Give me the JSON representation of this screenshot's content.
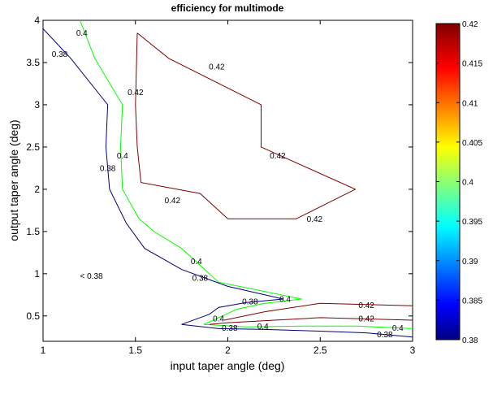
{
  "chart_data": {
    "type": "contour",
    "title": "efficiency for multimode",
    "xlabel": "input taper angle (deg)",
    "ylabel": "output taper angle (deg)",
    "xlim": [
      1,
      3
    ],
    "ylim": [
      0.2,
      4
    ],
    "xticks": [
      "1",
      "1.5",
      "2",
      "2.5",
      "3"
    ],
    "yticks": [
      "0.5",
      "1",
      "1.5",
      "2",
      "2.5",
      "3",
      "3.5",
      "4"
    ],
    "grid": false,
    "annotation": "< 0.38",
    "colorbar": {
      "range": [
        0.38,
        0.42
      ],
      "ticks": [
        "0.38",
        "0.385",
        "0.39",
        "0.395",
        "0.4",
        "0.405",
        "0.41",
        "0.415",
        "0.42"
      ],
      "colormap": [
        "#000080",
        "#0000ff",
        "#00ffff",
        "#ffff00",
        "#ff0000",
        "#800000"
      ]
    },
    "series": [
      {
        "level": "0.38",
        "color": "#000080",
        "paths": [
          [
            [
              1.0,
              3.9
            ],
            [
              1.15,
              3.55
            ],
            [
              1.35,
              3.0
            ],
            [
              1.34,
              2.5
            ],
            [
              1.36,
              2.0
            ],
            [
              1.45,
              1.6
            ],
            [
              1.55,
              1.3
            ],
            [
              1.75,
              1.05
            ],
            [
              2.0,
              0.85
            ],
            [
              2.3,
              0.7
            ]
          ],
          [
            [
              2.3,
              0.7
            ],
            [
              2.1,
              0.66
            ],
            [
              1.95,
              0.6
            ],
            [
              1.9,
              0.52
            ],
            [
              1.75,
              0.4
            ],
            [
              1.95,
              0.35
            ],
            [
              2.2,
              0.34
            ],
            [
              2.5,
              0.32
            ],
            [
              2.75,
              0.3
            ],
            [
              3.0,
              0.25
            ]
          ]
        ],
        "labels": [
          {
            "text": "0.38",
            "x": 1.09,
            "y": 3.6
          },
          {
            "text": "0.38",
            "x": 1.35,
            "y": 2.25
          },
          {
            "text": "0.38",
            "x": 1.85,
            "y": 0.95
          },
          {
            "text": "0.38",
            "x": 2.12,
            "y": 0.67
          },
          {
            "text": "0.38",
            "x": 2.01,
            "y": 0.36
          },
          {
            "text": "0.38",
            "x": 2.85,
            "y": 0.28
          }
        ]
      },
      {
        "level": "0.4",
        "color": "#00ff00",
        "paths": [
          [
            [
              1.2,
              4.0
            ],
            [
              1.28,
              3.55
            ],
            [
              1.43,
              3.0
            ],
            [
              1.42,
              2.5
            ],
            [
              1.43,
              2.0
            ],
            [
              1.52,
              1.65
            ],
            [
              1.6,
              1.5
            ],
            [
              1.75,
              1.3
            ],
            [
              1.95,
              0.9
            ],
            [
              2.4,
              0.7
            ]
          ],
          [
            [
              2.4,
              0.7
            ],
            [
              2.2,
              0.65
            ],
            [
              2.05,
              0.58
            ],
            [
              1.97,
              0.5
            ],
            [
              1.87,
              0.4
            ],
            [
              2.1,
              0.37
            ],
            [
              2.4,
              0.38
            ],
            [
              2.7,
              0.38
            ],
            [
              3.0,
              0.35
            ]
          ]
        ],
        "labels": [
          {
            "text": "0.4",
            "x": 1.21,
            "y": 3.85
          },
          {
            "text": "0.4",
            "x": 1.43,
            "y": 2.4
          },
          {
            "text": "0.4",
            "x": 1.83,
            "y": 1.15
          },
          {
            "text": "0.4",
            "x": 2.31,
            "y": 0.7
          },
          {
            "text": "0.4",
            "x": 1.95,
            "y": 0.47
          },
          {
            "text": "0.4",
            "x": 2.19,
            "y": 0.38
          },
          {
            "text": "0.4",
            "x": 2.92,
            "y": 0.36
          }
        ]
      },
      {
        "level": "0.42",
        "color": "#800000",
        "paths": [
          [
            [
              1.51,
              3.85
            ],
            [
              1.68,
              3.55
            ],
            [
              2.18,
              3.0
            ],
            [
              2.18,
              2.5
            ],
            [
              2.69,
              2.0
            ],
            [
              2.37,
              1.65
            ],
            [
              2.0,
              1.65
            ],
            [
              1.85,
              1.95
            ],
            [
              1.53,
              2.08
            ],
            [
              1.51,
              2.5
            ],
            [
              1.5,
              3.0
            ],
            [
              1.51,
              3.85
            ]
          ],
          [
            [
              3.0,
              0.62
            ],
            [
              2.5,
              0.65
            ],
            [
              2.2,
              0.55
            ],
            [
              1.98,
              0.45
            ]
          ],
          [
            [
              3.0,
              0.45
            ],
            [
              2.5,
              0.48
            ],
            [
              2.0,
              0.42
            ],
            [
              1.9,
              0.4
            ]
          ]
        ],
        "labels": [
          {
            "text": "0.42",
            "x": 1.94,
            "y": 3.45
          },
          {
            "text": "0.42",
            "x": 1.5,
            "y": 3.15
          },
          {
            "text": "0.42",
            "x": 2.27,
            "y": 2.4
          },
          {
            "text": "0.42",
            "x": 1.7,
            "y": 1.87
          },
          {
            "text": "0.42",
            "x": 2.47,
            "y": 1.65
          },
          {
            "text": "0.42",
            "x": 2.75,
            "y": 0.63
          },
          {
            "text": "0.42",
            "x": 2.75,
            "y": 0.47
          }
        ]
      }
    ]
  }
}
